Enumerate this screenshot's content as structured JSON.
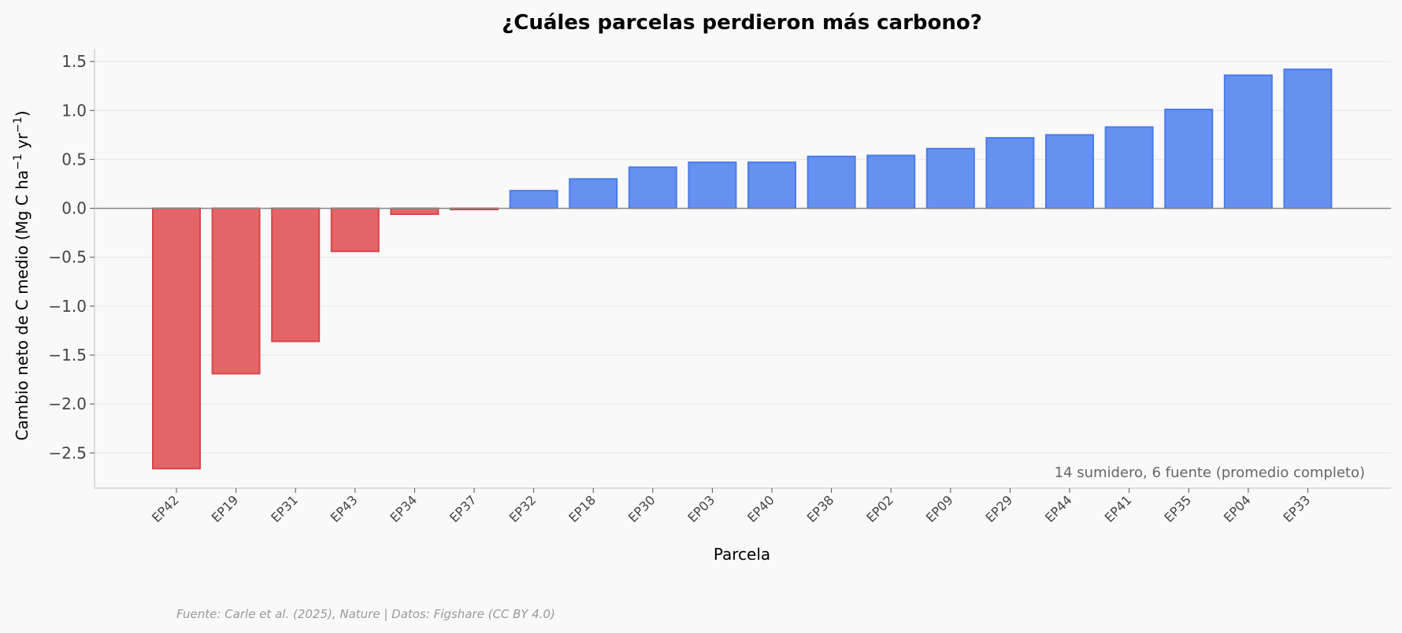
{
  "chart_data": {
    "type": "bar",
    "title": "¿Cuáles parcelas perdieron más carbono?",
    "xlabel": "Parcela",
    "ylabel": "Cambio neto de C medio (Mg C ha",
    "ylabel_sup1": "−1",
    "ylabel_mid": " yr",
    "ylabel_sup2": "−1",
    "ylabel_end": ")",
    "ylim": [
      -2.86,
      1.63
    ],
    "yticks": [
      1.5,
      1.0,
      0.5,
      0.0,
      -0.5,
      -1.0,
      -1.5,
      -2.0,
      -2.5
    ],
    "ytick_labels": [
      "1.5",
      "1.0",
      "0.5",
      "0.0",
      "−0.5",
      "−1.0",
      "−1.5",
      "−2.0",
      "−2.5"
    ],
    "categories": [
      "EP42",
      "EP19",
      "EP31",
      "EP43",
      "EP34",
      "EP37",
      "EP32",
      "EP18",
      "EP30",
      "EP03",
      "EP40",
      "EP38",
      "EP02",
      "EP09",
      "EP29",
      "EP44",
      "EP41",
      "EP35",
      "EP04",
      "EP33"
    ],
    "values": [
      -2.66,
      -1.69,
      -1.36,
      -0.44,
      -0.06,
      -0.01,
      0.18,
      0.3,
      0.42,
      0.47,
      0.47,
      0.53,
      0.54,
      0.61,
      0.72,
      0.75,
      0.83,
      1.01,
      1.36,
      1.42
    ],
    "colors": {
      "negative_fill": "#e46567",
      "negative_edge": "#d9454a",
      "positive_fill": "#6691f0",
      "positive_edge": "#4a7be8",
      "zero_line": "#888888",
      "grid": "#e6e6e6",
      "spine": "#cccccc"
    },
    "annotation": "14 sumidero, 6 fuente (promedio completo)",
    "source": "Fuente: Carle et al. (2025), Nature | Datos: Figshare (CC BY 4.0)"
  }
}
